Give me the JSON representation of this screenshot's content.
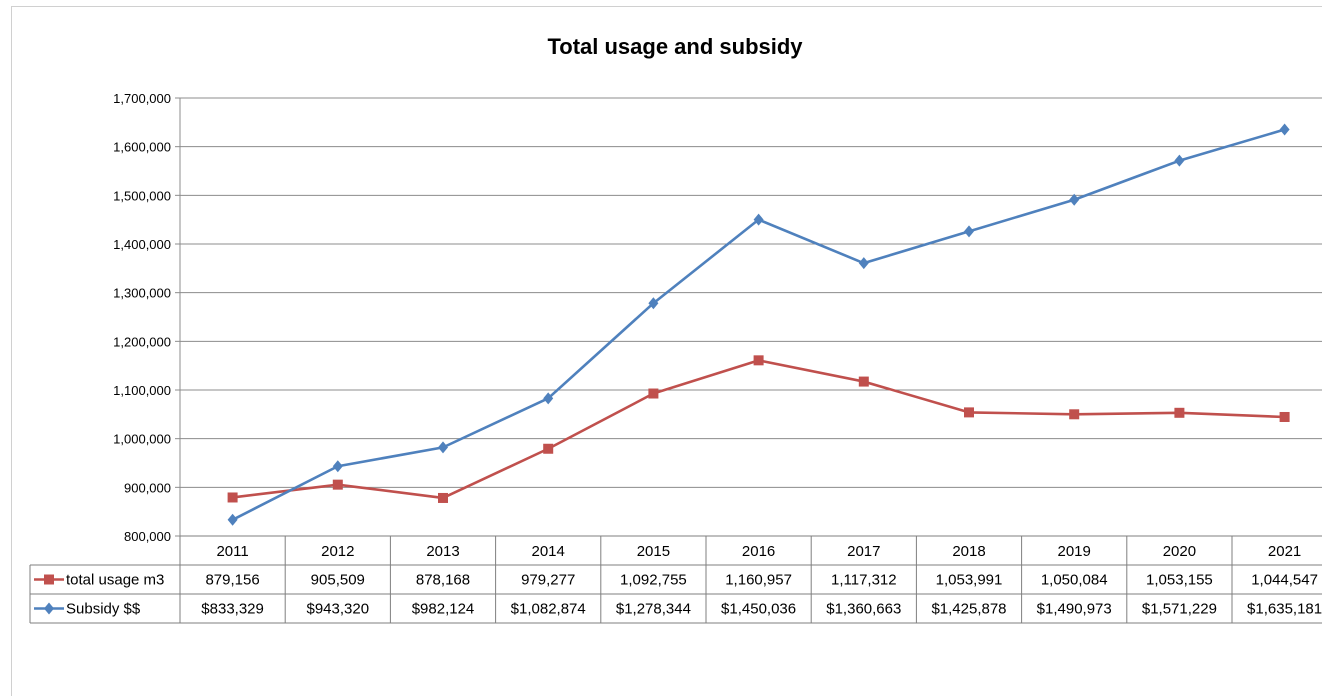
{
  "chart_data": {
    "type": "line",
    "title": "Total usage and subsidy",
    "categories": [
      "2011",
      "2012",
      "2013",
      "2014",
      "2015",
      "2016",
      "2017",
      "2018",
      "2019",
      "2020",
      "2021"
    ],
    "ylim": [
      800000,
      1700000
    ],
    "yticks": [
      "800,000",
      "900,000",
      "1,000,000",
      "1,100,000",
      "1,200,000",
      "1,300,000",
      "1,400,000",
      "1,500,000",
      "1,600,000",
      "1,700,000"
    ],
    "grid": true,
    "legend": "data-table",
    "series": [
      {
        "name": "total usage m3",
        "color": "#c0504d",
        "marker": "square",
        "values": [
          879156,
          905509,
          878168,
          979277,
          1092755,
          1160957,
          1117312,
          1053991,
          1050084,
          1053155,
          1044547
        ],
        "labels": [
          "879,156",
          "905,509",
          "878,168",
          "979,277",
          "1,092,755",
          "1,160,957",
          "1,117,312",
          "1,053,991",
          "1,050,084",
          "1,053,155",
          "1,044,547"
        ]
      },
      {
        "name": "Subsidy $$",
        "color": "#4f81bd",
        "marker": "diamond",
        "values": [
          833329,
          943320,
          982124,
          1082874,
          1278344,
          1450036,
          1360663,
          1425878,
          1490973,
          1571229,
          1635181
        ],
        "labels": [
          "$833,329",
          "$943,320",
          "$982,124",
          "$1,082,874",
          "$1,278,344",
          "$1,450,036",
          "$1,360,663",
          "$1,425,878",
          "$1,490,973",
          "$1,571,229",
          "$1,635,181"
        ]
      }
    ]
  }
}
